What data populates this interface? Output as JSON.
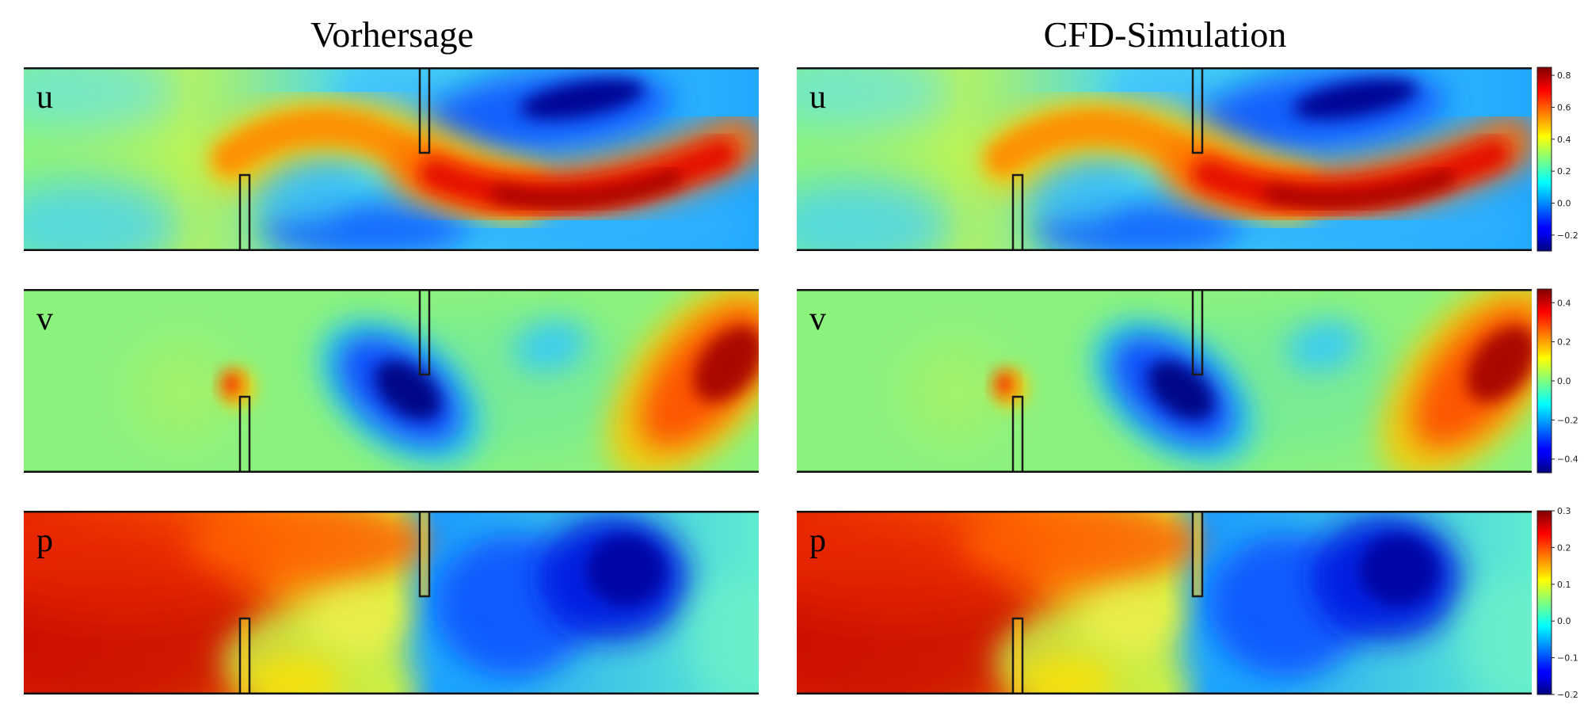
{
  "columns": [
    {
      "title": "Vorhersage"
    },
    {
      "title": "CFD-Simulation"
    }
  ],
  "rows": [
    {
      "label": "u",
      "colorbar_ticks": [
        "0.8",
        "0.6",
        "0.4",
        "0.2",
        "0.0",
        "−0.2"
      ],
      "vmin": -0.3,
      "vmax": 0.85
    },
    {
      "label": "v",
      "colorbar_ticks": [
        "0.4",
        "0.2",
        "0.0",
        "−0.2",
        "−0.4"
      ],
      "vmin": -0.47,
      "vmax": 0.47
    },
    {
      "label": "p",
      "colorbar_ticks": [
        "0.3",
        "0.2",
        "0.1",
        "0.0",
        "−0.1",
        "−0.2"
      ],
      "vmin": -0.2,
      "vmax": 0.3
    }
  ],
  "chart_data": {
    "type": "heatmap",
    "colormap": "jet",
    "panels": [
      {
        "field": "u",
        "source": "Vorhersage"
      },
      {
        "field": "u",
        "source": "CFD-Simulation"
      },
      {
        "field": "v",
        "source": "Vorhersage"
      },
      {
        "field": "v",
        "source": "CFD-Simulation"
      },
      {
        "field": "p",
        "source": "Vorhersage"
      },
      {
        "field": "p",
        "source": "CFD-Simulation"
      }
    ]
  }
}
